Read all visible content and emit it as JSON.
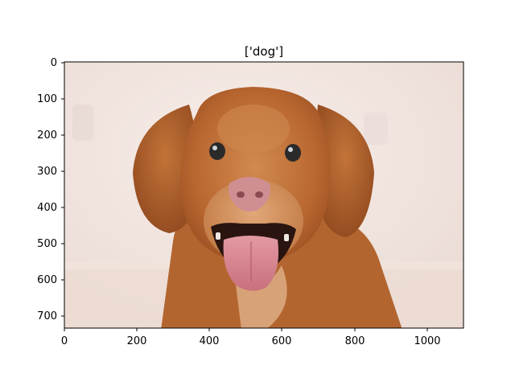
{
  "figure": {
    "title": "['dog']",
    "x_ticks": [
      "0",
      "200",
      "400",
      "600",
      "800",
      "1000"
    ],
    "y_ticks": [
      "0",
      "100",
      "200",
      "300",
      "400",
      "500",
      "600",
      "700"
    ]
  },
  "axes": {
    "x_values": [
      0,
      200,
      400,
      600,
      800,
      1000
    ],
    "y_values": [
      0,
      100,
      200,
      300,
      400,
      500,
      600,
      700
    ],
    "xlim": [
      0,
      1100
    ],
    "ylim": [
      734,
      0
    ]
  },
  "image": {
    "subject": "dog",
    "colors": {
      "background": "#f2e6e1",
      "wall_light": "#f8eeea",
      "floor": "#eadbd2",
      "fur_dark": "#9a4f22",
      "fur_mid": "#b8662f",
      "fur_light": "#d18a4f",
      "nose": "#cf8f92",
      "tongue": "#d98c96",
      "mouth": "#2a1410",
      "eye": "#2b2a2b"
    }
  }
}
